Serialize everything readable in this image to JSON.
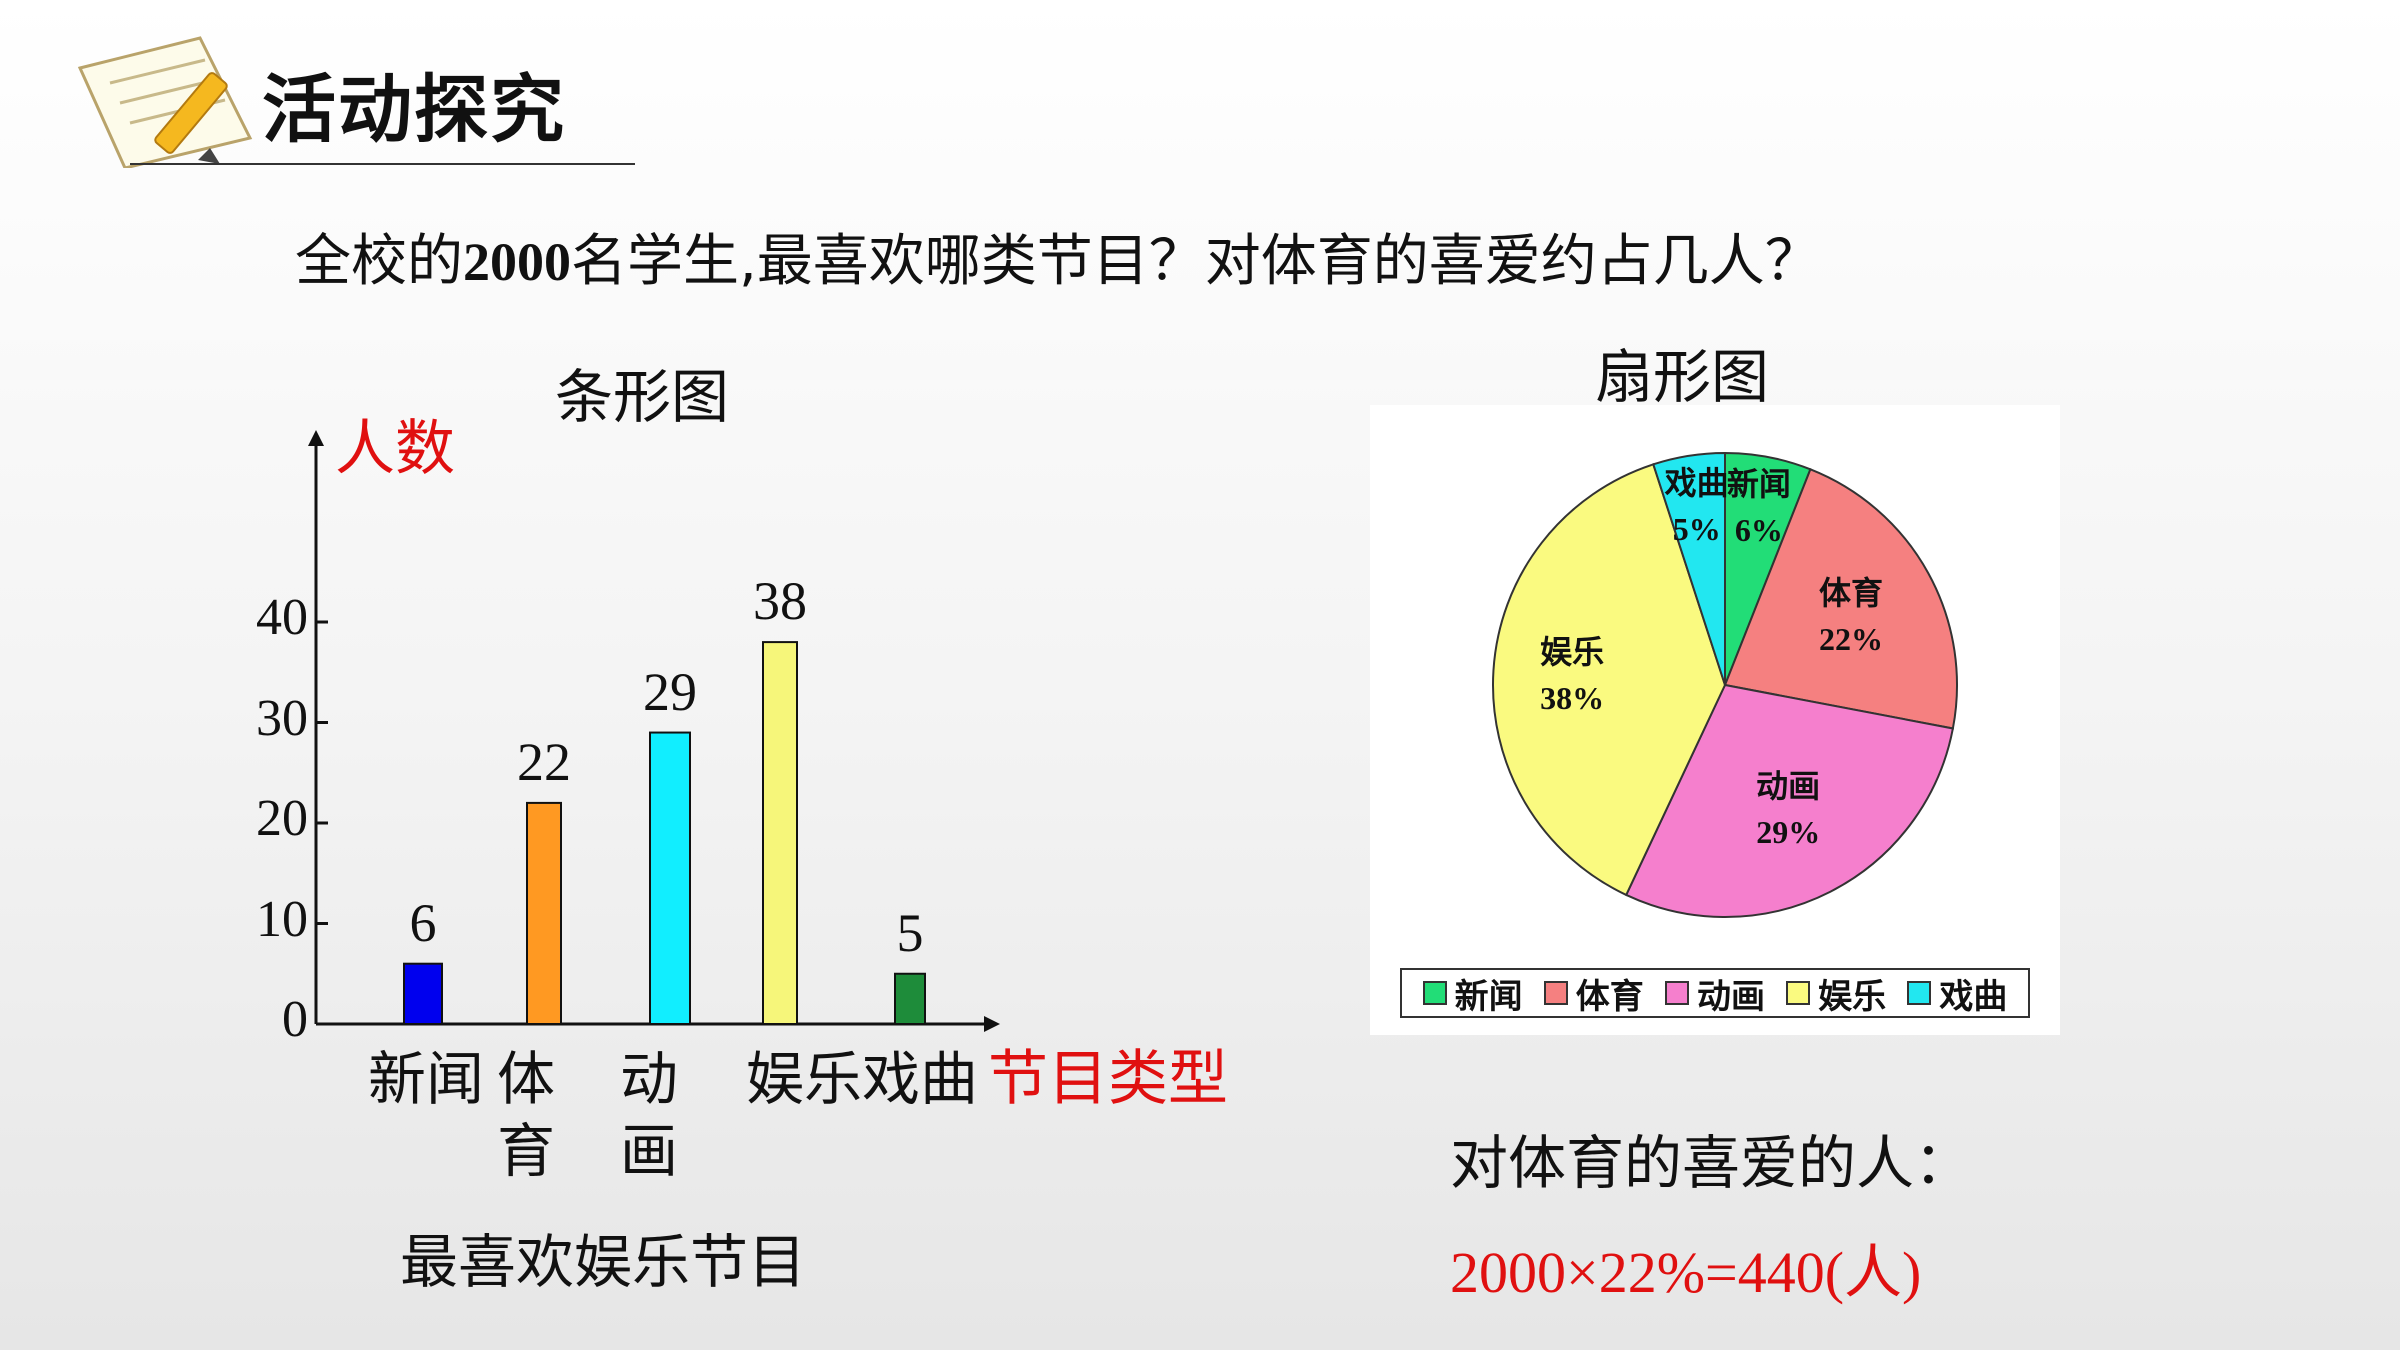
{
  "header": {
    "title": "活动探究"
  },
  "question": {
    "before": "全校的",
    "number": "2000",
    "after": "名学生,最喜欢哪类节目？对体育的喜爱约占几人？"
  },
  "chart_data": [
    {
      "type": "bar",
      "title": "条形图",
      "ylabel": "人数",
      "xlabel": "节目类型",
      "categories": [
        "新闻",
        "体育",
        "动画",
        "娱乐",
        "戏曲"
      ],
      "category_lines": [
        [
          "新闻"
        ],
        [
          "体",
          "育"
        ],
        [
          "动",
          "画"
        ],
        [
          "娱乐"
        ],
        [
          "戏曲"
        ]
      ],
      "values": [
        6,
        22,
        29,
        38,
        5
      ],
      "data_labels": [
        "6",
        "22",
        "29",
        "38",
        "5"
      ],
      "colors": [
        "#0000ee",
        "#ff9922",
        "#11eeff",
        "#f6f67a",
        "#1e8c3a"
      ],
      "yticks": [
        "0",
        "10",
        "20",
        "30",
        "40"
      ],
      "ylim": [
        0,
        40
      ],
      "grid": false
    },
    {
      "type": "pie",
      "title": "扇形图",
      "categories": [
        "新闻",
        "体育",
        "动画",
        "娱乐",
        "戏曲"
      ],
      "values": [
        6,
        22,
        29,
        38,
        5
      ],
      "value_labels": [
        "6%",
        "22%",
        "29%",
        "38%",
        "5%"
      ],
      "colors": [
        "#22dd77",
        "#f58080",
        "#f57fcd",
        "#fafa80",
        "#22e7f0"
      ],
      "legend_position": "bottom"
    }
  ],
  "conclusion": "最喜欢娱乐节目",
  "sport": {
    "label": "对体育的喜爱的人：",
    "formula": "2000×22%=440(人)"
  }
}
